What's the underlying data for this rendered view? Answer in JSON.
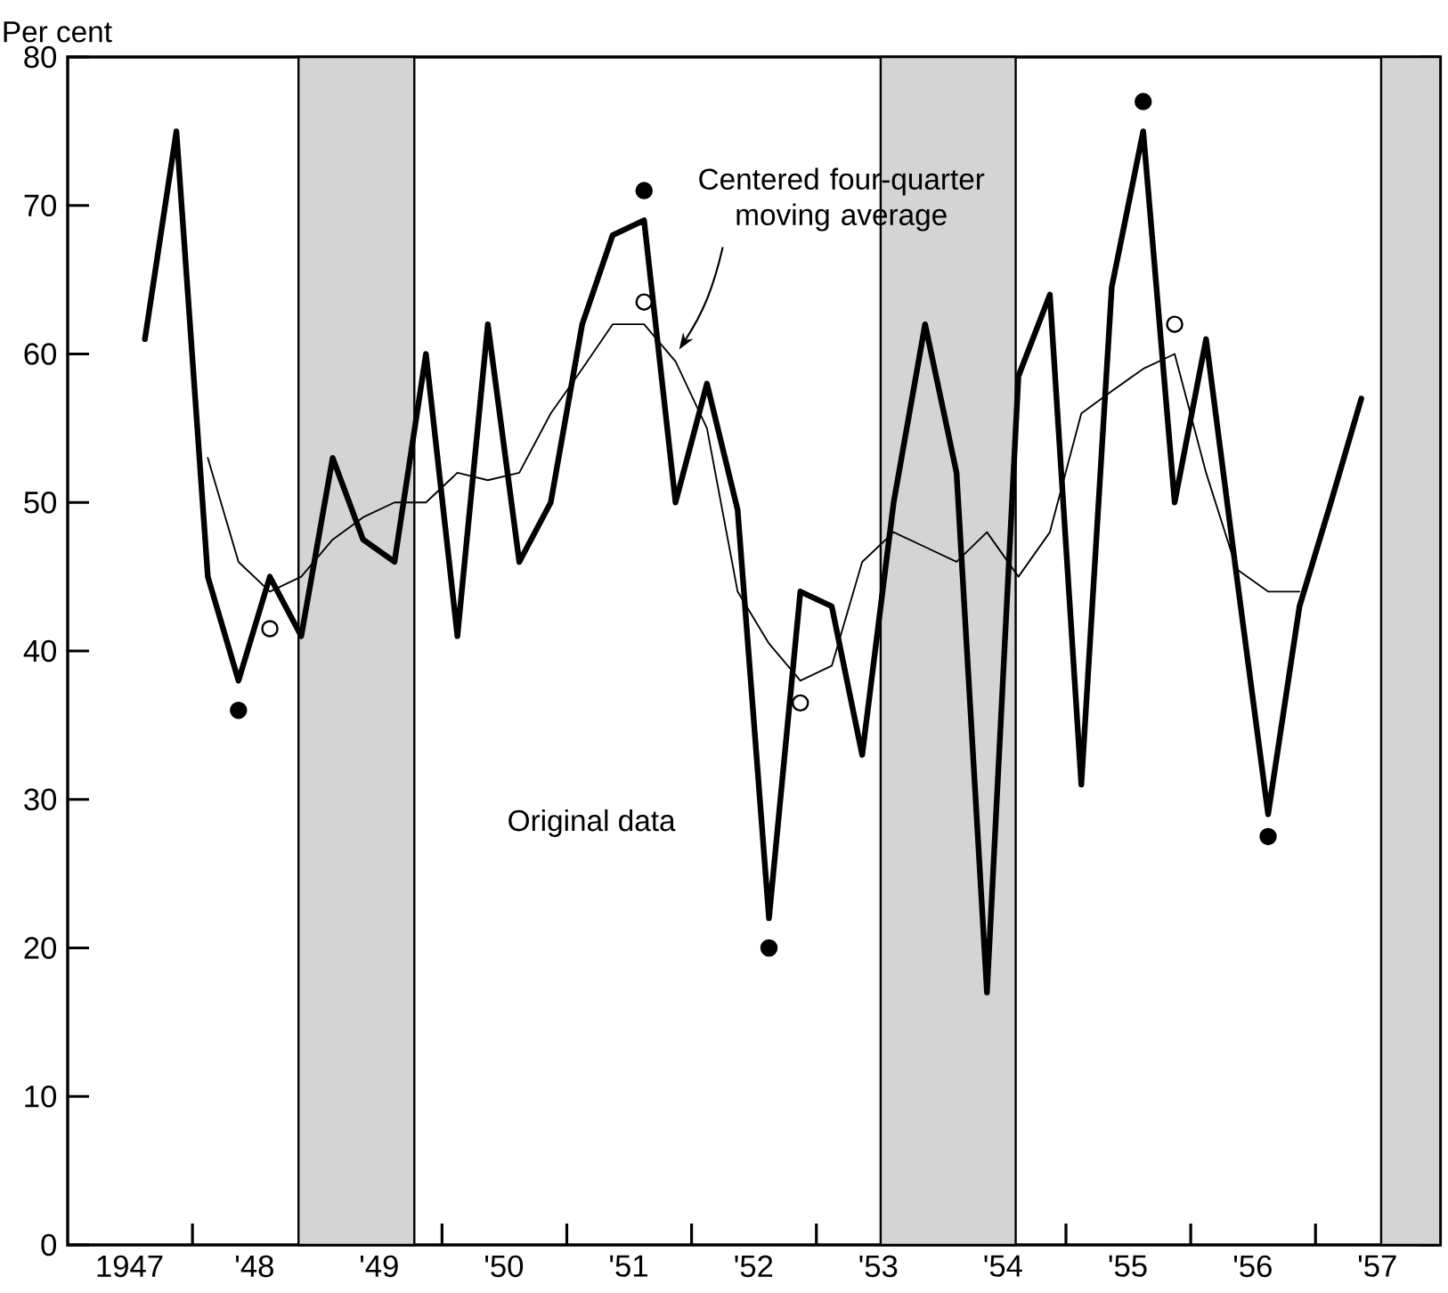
{
  "chart_data": {
    "type": "line",
    "ylabel": "Per cent",
    "xlim": [
      "1947-01-01",
      "1958-01-01"
    ],
    "ylim": [
      0,
      80
    ],
    "xticks": [
      {
        "value": "1947-07-01",
        "label": "1947"
      },
      {
        "value": "1948-07-01",
        "label": "'48"
      },
      {
        "value": "1949-07-01",
        "label": "'49"
      },
      {
        "value": "1950-07-01",
        "label": "'50"
      },
      {
        "value": "1951-07-01",
        "label": "'51"
      },
      {
        "value": "1952-07-01",
        "label": "'52"
      },
      {
        "value": "1953-07-01",
        "label": "'53"
      },
      {
        "value": "1954-07-01",
        "label": "'54"
      },
      {
        "value": "1955-07-01",
        "label": "'55"
      },
      {
        "value": "1956-07-01",
        "label": "'56"
      },
      {
        "value": "1957-07-01",
        "label": "'57"
      },
      {
        "value": "1948-01-01",
        "label": null
      },
      {
        "value": "1949-01-01",
        "label": null
      },
      {
        "value": "1950-01-01",
        "label": null
      },
      {
        "value": "1951-01-01",
        "label": null
      },
      {
        "value": "1952-01-01",
        "label": null
      },
      {
        "value": "1953-01-01",
        "label": null
      },
      {
        "value": "1954-01-01",
        "label": null
      },
      {
        "value": "1955-01-01",
        "label": null
      },
      {
        "value": "1956-01-01",
        "label": null
      },
      {
        "value": "1957-01-01",
        "label": null
      }
    ],
    "yticks": [
      0,
      10,
      20,
      30,
      40,
      50,
      60,
      70,
      80
    ],
    "bands": [
      {
        "axis": "x",
        "from": "1948-11-07",
        "to": "1949-10-12",
        "color": "#d4d4d4"
      },
      {
        "axis": "x",
        "from": "1953-07-08",
        "to": "1954-08-07",
        "color": "#d4d4d4"
      },
      {
        "axis": "x",
        "from": "1957-07-12",
        "to": "1958-01-01",
        "color": "#d4d4d4"
      }
    ],
    "series": [
      {
        "name": "Original data",
        "color": "#000000",
        "x": [
          "1947-08-15",
          "1947-11-15",
          "1948-02-15",
          "1948-05-15",
          "1948-08-15",
          "1948-11-15",
          "1949-02-15",
          "1949-05-15",
          "1949-08-15",
          "1949-11-15",
          "1950-02-15",
          "1950-05-15",
          "1950-08-15",
          "1950-11-15",
          "1951-02-15",
          "1951-05-15",
          "1951-08-15",
          "1951-11-15",
          "1952-02-15",
          "1952-05-15",
          "1952-08-15",
          "1952-11-15",
          "1953-02-15",
          "1953-05-15",
          "1953-08-15",
          "1953-11-15",
          "1954-02-15",
          "1954-05-15",
          "1954-08-15",
          "1954-11-15",
          "1955-02-15",
          "1955-05-15",
          "1955-08-15",
          "1955-11-15",
          "1956-02-15",
          "1956-05-15",
          "1956-08-15",
          "1956-11-15",
          "1957-02-15",
          "1957-05-15"
        ],
        "values": [
          61,
          75,
          45,
          38,
          45,
          41,
          53,
          47.5,
          46,
          60,
          41,
          62,
          46,
          50,
          62,
          68,
          69,
          50,
          58,
          49.5,
          22,
          44,
          43,
          33,
          50,
          62,
          52,
          17,
          58.5,
          64,
          31,
          64.5,
          75,
          50,
          61,
          45,
          29,
          43,
          50,
          57
        ]
      },
      {
        "name": "Centered four-quarter moving average",
        "color": "#000000",
        "x": [
          "1948-02-15",
          "1948-05-15",
          "1948-08-15",
          "1948-11-15",
          "1949-02-15",
          "1949-05-15",
          "1949-08-15",
          "1949-11-15",
          "1950-02-15",
          "1950-05-15",
          "1950-08-15",
          "1950-11-15",
          "1951-02-15",
          "1951-05-15",
          "1951-08-15",
          "1951-11-15",
          "1952-02-15",
          "1952-05-15",
          "1952-08-15",
          "1952-11-15",
          "1953-02-15",
          "1953-05-15",
          "1953-08-15",
          "1953-11-15",
          "1954-02-15",
          "1954-05-15",
          "1954-08-15",
          "1954-11-15",
          "1955-02-15",
          "1955-05-15",
          "1955-08-15",
          "1955-11-15",
          "1956-02-15",
          "1956-05-15",
          "1956-08-15",
          "1956-11-15"
        ],
        "values": [
          53,
          46,
          44,
          45,
          47.5,
          49,
          50,
          50,
          52,
          51.5,
          52,
          56,
          59,
          62,
          62,
          59.5,
          55,
          44,
          40.5,
          38,
          39,
          46,
          48,
          47,
          46,
          48,
          45,
          48,
          56,
          57.5,
          59,
          60,
          52,
          45.5,
          44,
          44
        ]
      },
      {
        "type": "scatter",
        "marker": "circle",
        "color": "#000000",
        "x": [
          "1948-05-15",
          "1951-08-15",
          "1952-08-15",
          "1955-08-15",
          "1956-08-15"
        ],
        "values": [
          36,
          71,
          20,
          77,
          27.5
        ]
      },
      {
        "type": "scatter",
        "marker": "circle",
        "color": "#ffffff",
        "x": [
          "1948-08-15",
          "1951-08-15",
          "1952-11-15",
          "1955-11-15"
        ],
        "values": [
          41.5,
          63.5,
          36.5,
          62
        ]
      }
    ]
  }
}
